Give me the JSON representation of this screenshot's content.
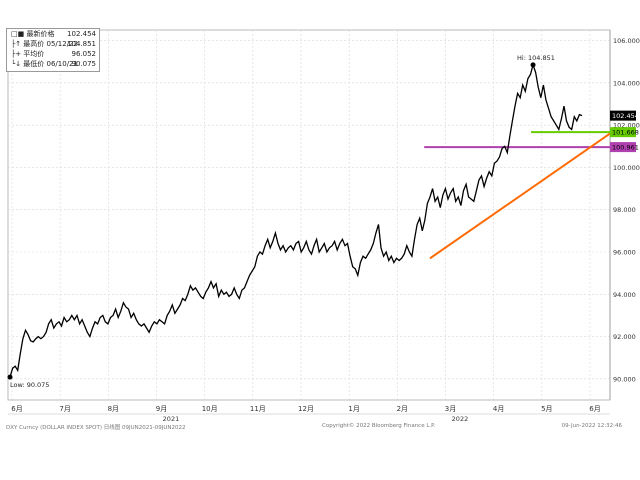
{
  "legend": {
    "rows": [
      {
        "label": "□■ 最新价格",
        "value": "102.454"
      },
      {
        "label": "├↑ 最高价 05/12/22",
        "value": "104.851"
      },
      {
        "label": "├+ 平均价",
        "value": "96.052"
      },
      {
        "label": "└↓ 最低价 06/10/21",
        "value": "90.075"
      }
    ]
  },
  "annotations": {
    "high_label": "Hi: 104.851",
    "low_label": "Low: 90.075",
    "last_price_tag": "102.454",
    "green_level_tag": "101.668",
    "magenta_level_tag": "100.961"
  },
  "footer": {
    "left": "DXY Curncy (DOLLAR INDEX SPOT)  日线图 09JUN2021-09JUN2022",
    "center": "Copyright© 2022 Bloomberg Finance L.P.",
    "right": "09-Jun-2022 12:32:46"
  },
  "colors": {
    "price_line": "#000000",
    "trendline": "#ff6a00",
    "green_level": "#66cc00",
    "magenta_level": "#b040b0",
    "grid": "#d8d8d8",
    "last_tag_bg": "#000000"
  },
  "chart_data": {
    "type": "line",
    "title": "",
    "xlabel": "",
    "ylabel": "",
    "ylim": [
      89.0,
      106.5
    ],
    "y_ticks": [
      90,
      92,
      94,
      96,
      98,
      100,
      102,
      104,
      106
    ],
    "y_tick_labels": [
      "90.000",
      "92.000",
      "94.000",
      "96.000",
      "98.000",
      "100.000",
      "102.000",
      "104.000",
      "106.000"
    ],
    "month_ticks": [
      "6月",
      "7月",
      "8月",
      "9月",
      "10月",
      "11月",
      "12月",
      "1月",
      "2月",
      "3月",
      "4月",
      "5月",
      "6月"
    ],
    "year_labels": [
      {
        "label": "2021",
        "month_index": 3
      },
      {
        "label": "2022",
        "month_index": 9
      }
    ],
    "series": [
      {
        "values": [
          90.08,
          90.5,
          90.6,
          90.4,
          91.2,
          91.9,
          92.3,
          92.1,
          91.8,
          91.75,
          91.9,
          92.0,
          91.9,
          92.0,
          92.2,
          92.6,
          92.8,
          92.4,
          92.6,
          92.7,
          92.5,
          92.9,
          92.7,
          92.8,
          93.0,
          92.8,
          93.0,
          92.6,
          92.8,
          92.5,
          92.2,
          92.0,
          92.4,
          92.7,
          92.6,
          92.9,
          93.0,
          92.7,
          92.6,
          92.9,
          93.0,
          93.3,
          92.9,
          93.2,
          93.6,
          93.4,
          93.3,
          92.9,
          93.1,
          92.8,
          92.6,
          92.5,
          92.6,
          92.4,
          92.2,
          92.5,
          92.7,
          92.6,
          92.8,
          92.7,
          92.6,
          93.0,
          93.2,
          93.5,
          93.1,
          93.3,
          93.5,
          93.8,
          93.7,
          94.0,
          94.4,
          94.2,
          94.3,
          94.1,
          93.9,
          93.8,
          94.1,
          94.3,
          94.6,
          94.3,
          94.5,
          93.9,
          94.2,
          94.0,
          94.1,
          93.9,
          94.0,
          94.3,
          94.0,
          93.8,
          94.2,
          94.3,
          94.6,
          94.9,
          95.1,
          95.3,
          95.8,
          96.0,
          95.9,
          96.3,
          96.6,
          96.2,
          96.5,
          96.9,
          96.4,
          96.1,
          96.3,
          96.0,
          96.2,
          96.3,
          96.1,
          96.4,
          96.5,
          96.0,
          96.2,
          96.5,
          96.1,
          95.9,
          96.3,
          96.6,
          96.0,
          96.2,
          96.4,
          96.0,
          96.2,
          96.3,
          96.5,
          96.1,
          96.4,
          96.6,
          96.3,
          96.4,
          95.8,
          95.3,
          95.2,
          94.9,
          95.5,
          95.8,
          95.7,
          95.9,
          96.1,
          96.4,
          96.9,
          97.3,
          96.2,
          95.8,
          96.0,
          95.6,
          95.8,
          95.5,
          95.7,
          95.6,
          95.7,
          95.9,
          96.3,
          96.0,
          95.8,
          96.6,
          97.3,
          97.6,
          97.0,
          97.5,
          98.3,
          98.6,
          99.0,
          98.4,
          98.6,
          98.1,
          98.7,
          99.0,
          98.5,
          98.8,
          99.0,
          98.4,
          98.6,
          98.2,
          98.9,
          99.2,
          98.6,
          98.5,
          98.4,
          98.9,
          99.4,
          99.6,
          99.1,
          99.5,
          99.8,
          99.6,
          100.2,
          100.3,
          100.5,
          100.9,
          101.0,
          100.7,
          101.5,
          102.2,
          102.9,
          103.5,
          103.3,
          103.9,
          103.6,
          104.2,
          104.4,
          104.85,
          104.5,
          103.8,
          103.3,
          103.9,
          103.2,
          102.8,
          102.4,
          102.2,
          102.0,
          101.8,
          102.3,
          102.9,
          102.2,
          101.9,
          101.8,
          102.4,
          102.2,
          102.5,
          102.45
        ]
      }
    ],
    "levels": [
      {
        "value": 101.668,
        "start_fraction": 0.905
      },
      {
        "value": 100.961,
        "start_fraction": 0.72
      }
    ],
    "trendline": {
      "from": {
        "index": 163,
        "value": 95.7
      },
      "to_value": 101.6
    }
  }
}
